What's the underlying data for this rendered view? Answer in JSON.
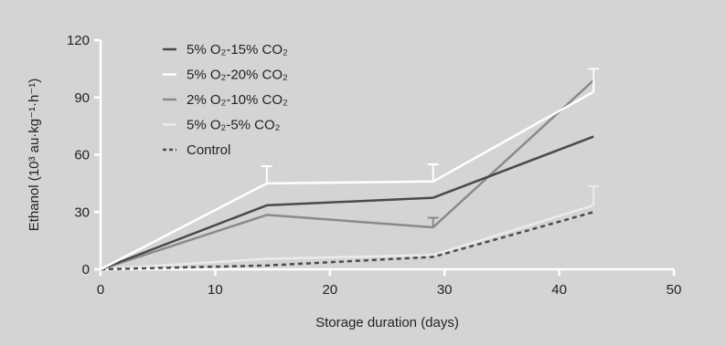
{
  "chart_data": {
    "type": "line",
    "xlabel": "Storage duration (days)",
    "ylabel": "Ethanol (10³ au·kg⁻¹·h⁻¹)",
    "xlim": [
      0,
      50
    ],
    "ylim": [
      0,
      120
    ],
    "xticks": [
      "0",
      "10",
      "20",
      "30",
      "40",
      "50"
    ],
    "yticks": [
      "0",
      "30",
      "60",
      "90",
      "120"
    ],
    "grid": false,
    "legend_position": "top-left",
    "x": [
      0,
      14.5,
      29,
      43
    ],
    "series": [
      {
        "name": "5% O₂-15% CO₂",
        "color": "#4a4a4a",
        "dashed": false,
        "values": [
          0,
          33.5,
          37.5,
          69.5
        ],
        "error_up": [
          null,
          null,
          null,
          null
        ]
      },
      {
        "name": "5% O₂-20% CO₂",
        "color": "#ffffff",
        "dashed": false,
        "values": [
          0,
          45,
          46,
          93
        ],
        "error_up": [
          null,
          9,
          9,
          12
        ]
      },
      {
        "name": "2% O₂-10% CO₂",
        "color": "#8a8a8a",
        "dashed": false,
        "values": [
          0,
          28.5,
          22,
          99
        ],
        "error_up": [
          null,
          null,
          5,
          6
        ]
      },
      {
        "name": "5% O₂-5% CO₂",
        "color": "#ebebeb",
        "dashed": false,
        "values": [
          0,
          5.5,
          7.5,
          33.5
        ],
        "error_up": [
          null,
          null,
          null,
          10
        ]
      },
      {
        "name": "Control",
        "color": "#4a4a4a",
        "dashed": true,
        "values": [
          0,
          2,
          6.5,
          30
        ],
        "error_up": [
          null,
          null,
          null,
          null
        ]
      }
    ]
  }
}
